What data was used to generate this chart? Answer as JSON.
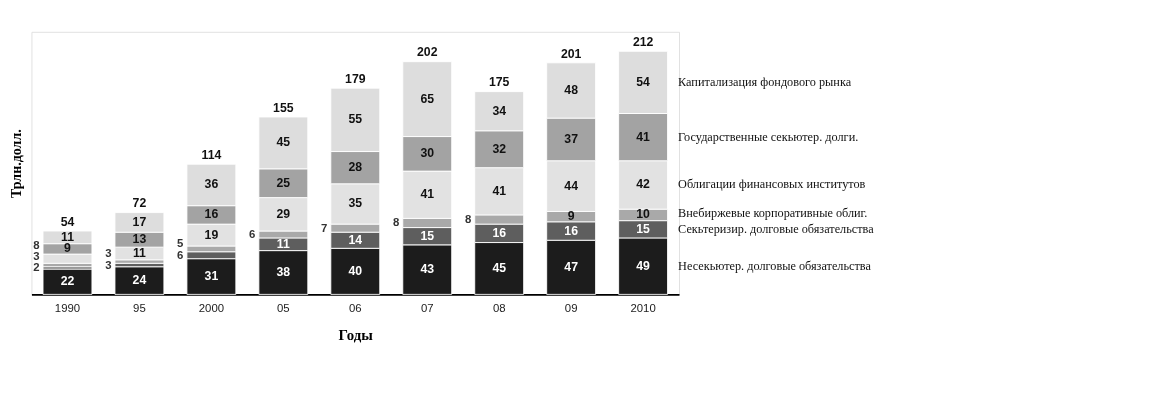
{
  "chart_data": {
    "type": "bar",
    "stacked": true,
    "data_labels": true,
    "legend": "right",
    "tick_labels": "x",
    "xlabel": "Годы",
    "ylabel": "Трлн.долл.",
    "categories": [
      "1990",
      "95",
      "2000",
      "05",
      "06",
      "07",
      "08",
      "09",
      "2010"
    ],
    "series": [
      {
        "name": "Несекьютер. долговые обязательства",
        "color": "#1c1c1c",
        "values": [
          22,
          24,
          31,
          38,
          40,
          43,
          45,
          47,
          49
        ]
      },
      {
        "name": "Секьтеризир. долговые обязательства",
        "color": "#5e5e5e",
        "values": [
          2,
          3,
          6,
          11,
          14,
          15,
          16,
          16,
          15
        ]
      },
      {
        "name": "Внебиржевые корпоративные облиг.",
        "color": "#a9a9a9",
        "values": [
          3,
          3,
          5,
          6,
          7,
          8,
          8,
          9,
          10
        ]
      },
      {
        "name": "Облигации финансовых институтов",
        "color": "#e2e2e2",
        "values": [
          8,
          11,
          19,
          29,
          35,
          41,
          41,
          44,
          42
        ]
      },
      {
        "name": "Государственные секьютер. долги.",
        "color": "#a3a3a3",
        "values": [
          9,
          13,
          16,
          25,
          28,
          30,
          32,
          37,
          41
        ]
      },
      {
        "name": "Капитализация фондового рынка",
        "color": "#dddddd",
        "values": [
          11,
          17,
          36,
          45,
          55,
          65,
          34,
          48,
          54
        ]
      }
    ],
    "totals": [
      "54",
      "72",
      "114",
      "155",
      "179",
      "202",
      "175",
      "201",
      "212"
    ]
  }
}
